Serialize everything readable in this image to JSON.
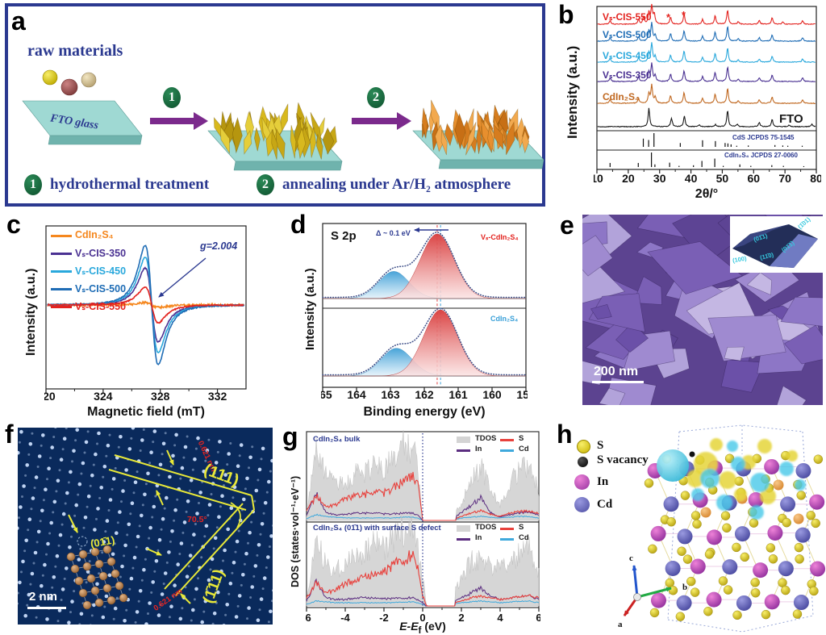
{
  "panels": {
    "a": "a",
    "b": "b",
    "c": "c",
    "d": "d",
    "e": "e",
    "f": "f",
    "g": "g",
    "h": "h"
  },
  "colors": {
    "accent_blue": "#2b3990",
    "badge_green": "#0d4f2c",
    "fto_teal": "#9fd9d3",
    "gold": "#d8b91e",
    "orange": "#e78f2e",
    "sem_purple": "#7a5fb5",
    "tem_navy": "#0a2a5c",
    "red": "#e3231f",
    "blue": "#1e6cb5",
    "cyan": "#29a8dc",
    "purple": "#4a3192",
    "brown_orange": "#c06820"
  },
  "panel_a": {
    "raw_materials": "raw materials",
    "fto_glass": "FTO glass",
    "step1": "1",
    "step2": "2",
    "legend1": "hydrothermal treatment",
    "legend2": "annealing under Ar/H₂ atmosphere"
  },
  "panel_b": {
    "ylabel": "Intensity (a.u.)",
    "xlabel": "2θ/°",
    "asterisk": "*"
  },
  "panel_c": {
    "ylabel": "Intensity (a.u.)",
    "xlabel": "Magnetic field (mT)",
    "annotation": "g=2.004"
  },
  "panel_d": {
    "title": "S 2p",
    "ylabel": "Intensity (a.u.)",
    "xlabel": "Binding energy (eV)",
    "delta": "Δ ~ 0.1 eV",
    "top_label": "Vₛ-CdIn₂S₄",
    "top_label_color": "#e3231f",
    "bottom_label": "CdIn₂S₄",
    "bottom_label_color": "#3aa0d8"
  },
  "panel_e": {
    "scale_bar": "200 nm",
    "facets": [
      "(01̄1)",
      "(1̄01)",
      "(100)",
      "(11̄0)",
      "(01̄1̄)"
    ]
  },
  "panel_f": {
    "scale_bar": "2 nm",
    "d1": "0.621 nm",
    "d2": "0.621 nm",
    "angle": "70.5°",
    "plane1": "(111)",
    "plane2": "(1̄11)",
    "plane3": "(01̄1)"
  },
  "panel_g": {
    "ylabel": "DOS (states·vol⁻¹·eV⁻¹)",
    "xlabel_main": "E-E",
    "xlabel_sub": "f",
    "xlabel_unit": " (eV)"
  },
  "panel_h": {
    "legend": [
      {
        "label": "S",
        "color": "#e8d820"
      },
      {
        "label": "S vacancy",
        "color": "#1a1a1a"
      },
      {
        "label": "In",
        "color": "#c44fb0"
      },
      {
        "label": "Cd",
        "color": "#6b6bc0"
      }
    ],
    "axes": {
      "a": "a",
      "b": "b",
      "c": "c"
    }
  },
  "chart_data": [
    {
      "id": "xrd",
      "type": "line",
      "xlabel": "2θ/°",
      "ylabel": "Intensity (a.u.)",
      "xlim": [
        10,
        80
      ],
      "xticks": [
        10,
        20,
        30,
        40,
        50,
        60,
        70,
        80
      ],
      "series": [
        {
          "name": "Vₛ-CIS-550",
          "color": "#e3231f",
          "peaks": [
            [
              14.2,
              0.1
            ],
            [
              23.3,
              0.13
            ],
            [
              24.9,
              0.2
            ],
            [
              26.6,
              0.32
            ],
            [
              27.5,
              0.5
            ],
            [
              28.3,
              0.28
            ],
            [
              33.5,
              0.2
            ],
            [
              37.8,
              0.28
            ],
            [
              43.7,
              0.14
            ],
            [
              47.7,
              0.24
            ],
            [
              51.7,
              0.4
            ],
            [
              55.1,
              0.07
            ],
            [
              61.8,
              0.1
            ],
            [
              65.9,
              0.18
            ],
            [
              69.3,
              0.06
            ],
            [
              75.6,
              0.1
            ]
          ]
        },
        {
          "name": "Vₛ-CIS-500",
          "color": "#1e6cb5",
          "peaks": [
            [
              14.2,
              0.1
            ],
            [
              23.3,
              0.13
            ],
            [
              26.6,
              0.28
            ],
            [
              27.5,
              0.5
            ],
            [
              28.6,
              0.17
            ],
            [
              33.5,
              0.22
            ],
            [
              37.8,
              0.3
            ],
            [
              43.7,
              0.14
            ],
            [
              47.7,
              0.25
            ],
            [
              51.7,
              0.42
            ],
            [
              55.1,
              0.07
            ],
            [
              61.8,
              0.1
            ],
            [
              65.9,
              0.18
            ],
            [
              75.6,
              0.1
            ]
          ]
        },
        {
          "name": "Vₛ-CIS-450",
          "color": "#29a8dc",
          "peaks": [
            [
              14.2,
              0.1
            ],
            [
              23.3,
              0.12
            ],
            [
              26.6,
              0.26
            ],
            [
              27.5,
              0.52
            ],
            [
              28.6,
              0.16
            ],
            [
              33.5,
              0.2
            ],
            [
              37.8,
              0.32
            ],
            [
              43.7,
              0.13
            ],
            [
              47.7,
              0.24
            ],
            [
              51.7,
              0.4
            ],
            [
              55.1,
              0.06
            ],
            [
              61.8,
              0.09
            ],
            [
              65.9,
              0.17
            ],
            [
              75.6,
              0.09
            ]
          ]
        },
        {
          "name": "Vₛ-CIS-350",
          "color": "#4a3192",
          "peaks": [
            [
              14.2,
              0.1
            ],
            [
              23.3,
              0.13
            ],
            [
              26.6,
              0.27
            ],
            [
              27.5,
              0.5
            ],
            [
              28.6,
              0.17
            ],
            [
              33.5,
              0.21
            ],
            [
              37.8,
              0.3
            ],
            [
              43.7,
              0.14
            ],
            [
              47.7,
              0.25
            ],
            [
              51.7,
              0.41
            ],
            [
              55.1,
              0.07
            ],
            [
              61.8,
              0.1
            ],
            [
              65.9,
              0.18
            ],
            [
              75.6,
              0.1
            ]
          ]
        },
        {
          "name": "CdIn₂S₄",
          "color": "#c06820",
          "peaks": [
            [
              14.2,
              0.1
            ],
            [
              23.3,
              0.13
            ],
            [
              26.6,
              0.27
            ],
            [
              27.5,
              0.5
            ],
            [
              28.6,
              0.17
            ],
            [
              33.5,
              0.22
            ],
            [
              37.8,
              0.3
            ],
            [
              43.7,
              0.14
            ],
            [
              47.7,
              0.26
            ],
            [
              51.7,
              0.42
            ],
            [
              55.1,
              0.07
            ],
            [
              61.8,
              0.1
            ],
            [
              65.9,
              0.18
            ],
            [
              75.6,
              0.1
            ]
          ]
        },
        {
          "name": "FTO",
          "color": "#1a1a1a",
          "peaks": [
            [
              26.6,
              0.52
            ],
            [
              33.8,
              0.24
            ],
            [
              37.9,
              0.3
            ],
            [
              42.6,
              0.05
            ],
            [
              47.8,
              0.06
            ],
            [
              51.7,
              0.46
            ],
            [
              54.8,
              0.07
            ],
            [
              61.8,
              0.12
            ],
            [
              65.9,
              0.2
            ],
            [
              71.3,
              0.05
            ],
            [
              78.6,
              0.07
            ]
          ]
        }
      ],
      "sticks": [
        {
          "name": "CdS JCPDS 75-1545",
          "color": "#1a1a1a",
          "label_color": "#2b3990",
          "peaks": [
            [
              24.8,
              0.6
            ],
            [
              26.5,
              0.5
            ],
            [
              28.2,
              1.0
            ],
            [
              36.6,
              0.28
            ],
            [
              43.7,
              0.48
            ],
            [
              47.8,
              0.42
            ],
            [
              50.9,
              0.28
            ],
            [
              51.8,
              0.25
            ],
            [
              52.8,
              0.18
            ],
            [
              54.6,
              0.08
            ],
            [
              58.3,
              0.1
            ],
            [
              66.8,
              0.13
            ],
            [
              69.3,
              0.1
            ],
            [
              70.9,
              0.08
            ],
            [
              75.5,
              0.08
            ]
          ]
        },
        {
          "name": "CdIn₂S₄ JCPDS 27-0060",
          "color": "#1a1a1a",
          "label_color": "#2b3990",
          "peaks": [
            [
              14.2,
              0.28
            ],
            [
              23.2,
              0.28
            ],
            [
              27.4,
              1.0
            ],
            [
              28.5,
              0.18
            ],
            [
              33.2,
              0.3
            ],
            [
              36.2,
              0.08
            ],
            [
              40.8,
              0.12
            ],
            [
              43.5,
              0.42
            ],
            [
              47.6,
              0.58
            ],
            [
              50.3,
              0.08
            ],
            [
              55.6,
              0.18
            ],
            [
              59.1,
              0.08
            ],
            [
              65.8,
              0.13
            ],
            [
              69.5,
              0.08
            ],
            [
              76.0,
              0.06
            ]
          ]
        }
      ]
    },
    {
      "id": "epr",
      "type": "line",
      "xlabel": "Magnetic field (mT)",
      "ylabel": "Intensity (a.u.)",
      "xlim": [
        320,
        334
      ],
      "xticks": [
        320,
        324,
        328,
        332
      ],
      "center": 327.4,
      "width": 0.8,
      "g_factor": "g=2.004",
      "series": [
        {
          "name": "CdIn₂S₄",
          "color": "#f5871e",
          "amp": 0.04
        },
        {
          "name": "Vₛ-CIS-350",
          "color": "#4a3192",
          "amp": 0.62
        },
        {
          "name": "Vₛ-CIS-450",
          "color": "#29a8dc",
          "amp": 0.8
        },
        {
          "name": "Vₛ-CIS-500",
          "color": "#1e6cb5",
          "amp": 1.0
        },
        {
          "name": "Vₛ-CIS-550",
          "color": "#e3231f",
          "amp": 0.3
        }
      ]
    },
    {
      "id": "xps",
      "type": "area",
      "title": "S 2p",
      "xlabel": "Binding energy (eV)",
      "ylabel": "Intensity (a.u.)",
      "xlim": [
        165,
        159
      ],
      "xticks": [
        165,
        164,
        163,
        162,
        161,
        160,
        159
      ],
      "delta": "Δ ~ 0.1 eV",
      "subplots": [
        {
          "label": "Vₛ-CdIn₂S₄",
          "peaks": [
            {
              "center": 161.62,
              "sigma": 0.5,
              "amp": 1.0,
              "color": "red"
            },
            {
              "center": 162.9,
              "sigma": 0.45,
              "amp": 0.42,
              "color": "blue"
            }
          ]
        },
        {
          "label": "CdIn₂S₄",
          "peaks": [
            {
              "center": 161.52,
              "sigma": 0.5,
              "amp": 1.05,
              "color": "red"
            },
            {
              "center": 162.82,
              "sigma": 0.46,
              "amp": 0.44,
              "color": "blue"
            }
          ]
        }
      ],
      "dashed_lines": [
        161.62,
        161.52
      ]
    },
    {
      "id": "dos",
      "type": "area",
      "xlabel": "E-Ef (eV)",
      "ylabel": "DOS (states·vol⁻¹·eV⁻¹)",
      "xlim": [
        -6,
        6
      ],
      "xticks": [
        -6,
        -4,
        -2,
        0,
        2,
        4,
        6
      ],
      "legend": [
        "TDOS",
        "S",
        "In",
        "Cd"
      ],
      "line_colors": {
        "tdos": "#d4d4d4",
        "s": "#e8413c",
        "in": "#5b2d80",
        "cd": "#3fa9dc"
      },
      "x": [
        -6,
        -5.5,
        -5,
        -4.5,
        -4,
        -3.5,
        -3,
        -2.5,
        -2,
        -1.5,
        -1,
        -0.5,
        -0.25,
        0,
        0.25,
        0.5,
        1,
        1.5,
        2,
        2.5,
        3,
        3.5,
        4,
        4.5,
        5,
        5.5,
        6
      ],
      "subplots": [
        {
          "title": "CdIn₂S₄ bulk",
          "gap": [
            0,
            1.7
          ],
          "gap_state": null,
          "tdos": [
            0.05,
            0.95,
            0.55,
            0.5,
            0.42,
            0.58,
            0.6,
            0.68,
            0.65,
            0.8,
            0.9,
            0.85,
            0.7,
            0,
            0,
            0,
            0,
            0,
            0.22,
            0.48,
            0.66,
            0.42,
            0.18,
            0.48,
            0.6,
            0.7,
            0.35
          ],
          "s": [
            0.12,
            0.3,
            0.17,
            0.2,
            0.26,
            0.3,
            0.32,
            0.34,
            0.34,
            0.4,
            0.48,
            0.55,
            0.5,
            0,
            0,
            0,
            0,
            0,
            0.05,
            0.09,
            0.12,
            0.08,
            0.05,
            0.09,
            0.11,
            0.12,
            0.09
          ],
          "in": [
            0.06,
            0.33,
            0.1,
            0.07,
            0.07,
            0.09,
            0.09,
            0.09,
            0.08,
            0.08,
            0.09,
            0.09,
            0.07,
            0,
            0,
            0,
            0,
            0,
            0.1,
            0.18,
            0.28,
            0.1,
            0.04,
            0.07,
            0.09,
            0.11,
            0.07
          ],
          "cd": [
            0.02,
            0.07,
            0.05,
            0.04,
            0.03,
            0.03,
            0.03,
            0.03,
            0.03,
            0.03,
            0.04,
            0.04,
            0.03,
            0,
            0,
            0,
            0,
            0,
            0.03,
            0.04,
            0.05,
            0.04,
            0.03,
            0.04,
            0.05,
            0.05,
            0.03
          ]
        },
        {
          "title": "CdIn₂S₄ (01̄1) with surface S defect",
          "gap": [
            0.12,
            1.65
          ],
          "gap_state": {
            "x": 0.03,
            "h": 0.32,
            "w": 0.1
          },
          "tdos": [
            0.05,
            0.8,
            0.5,
            0.45,
            0.5,
            0.62,
            0.68,
            0.75,
            0.72,
            0.85,
            0.92,
            0.9,
            0.75,
            0.3,
            0,
            0,
            0,
            0.1,
            0.35,
            0.55,
            0.6,
            0.5,
            0.45,
            0.55,
            0.65,
            0.75,
            0.4
          ],
          "s": [
            0.1,
            0.28,
            0.16,
            0.2,
            0.28,
            0.32,
            0.35,
            0.4,
            0.42,
            0.5,
            0.58,
            0.62,
            0.5,
            0.12,
            0,
            0,
            0,
            0.03,
            0.06,
            0.1,
            0.12,
            0.1,
            0.08,
            0.1,
            0.12,
            0.13,
            0.1
          ],
          "in": [
            0.06,
            0.3,
            0.1,
            0.08,
            0.08,
            0.1,
            0.1,
            0.1,
            0.09,
            0.09,
            0.1,
            0.1,
            0.08,
            0.04,
            0,
            0,
            0,
            0.04,
            0.1,
            0.16,
            0.22,
            0.12,
            0.08,
            0.1,
            0.12,
            0.13,
            0.08
          ],
          "cd": [
            0.02,
            0.06,
            0.05,
            0.04,
            0.04,
            0.04,
            0.04,
            0.04,
            0.04,
            0.04,
            0.05,
            0.05,
            0.04,
            0.02,
            0,
            0,
            0,
            0.02,
            0.04,
            0.05,
            0.06,
            0.05,
            0.04,
            0.05,
            0.06,
            0.06,
            0.04
          ]
        }
      ]
    }
  ]
}
